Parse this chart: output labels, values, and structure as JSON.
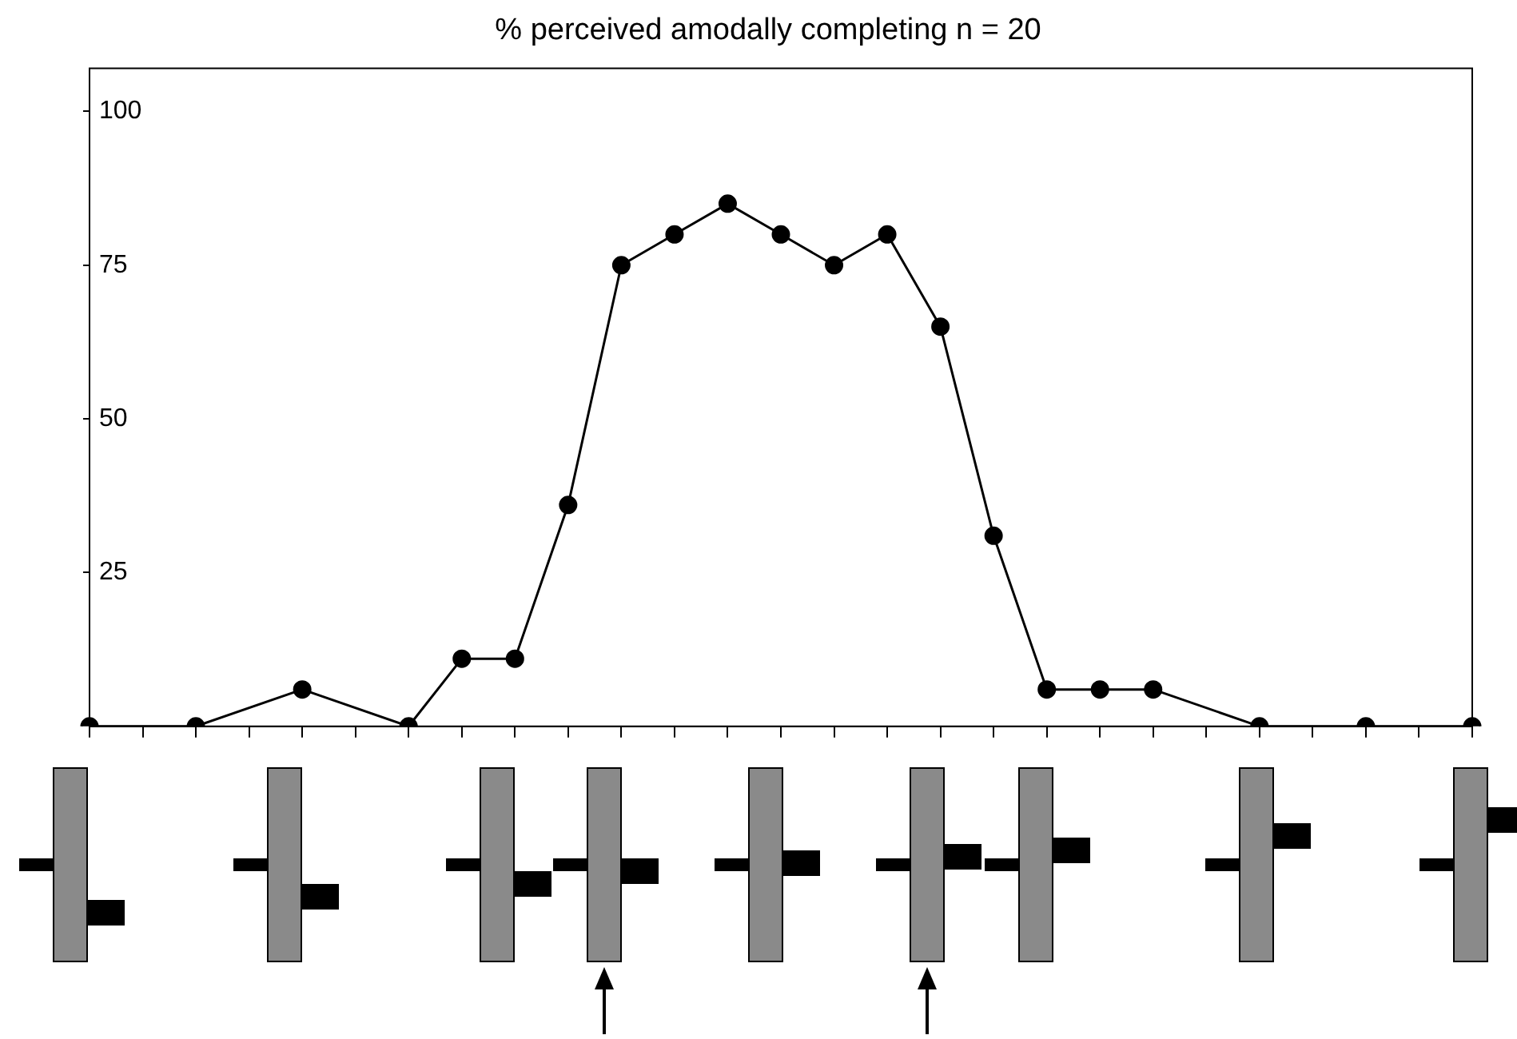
{
  "chart_data": {
    "type": "line",
    "title": "% perceived amodally completing n = 20",
    "categories": [
      null,
      null,
      null,
      null,
      null,
      null,
      null,
      null,
      null,
      null,
      null,
      null,
      null,
      null,
      null,
      null,
      null,
      null,
      null,
      null,
      null,
      null,
      null,
      null,
      null,
      null,
      null
    ],
    "series": [
      {
        "color": "#000000",
        "values": [
          0,
          null,
          0,
          null,
          6,
          null,
          0,
          11,
          11,
          36,
          75,
          80,
          85,
          80,
          75,
          80,
          65,
          31,
          6,
          6,
          6,
          null,
          0,
          null,
          0,
          null,
          0
        ]
      }
    ],
    "ylim": [
      0,
      107
    ],
    "yticks": [
      25,
      50,
      75,
      100
    ],
    "grid": false,
    "legend": false,
    "tick_labels": "y",
    "marker": "circle",
    "line_style": "solid"
  }
}
